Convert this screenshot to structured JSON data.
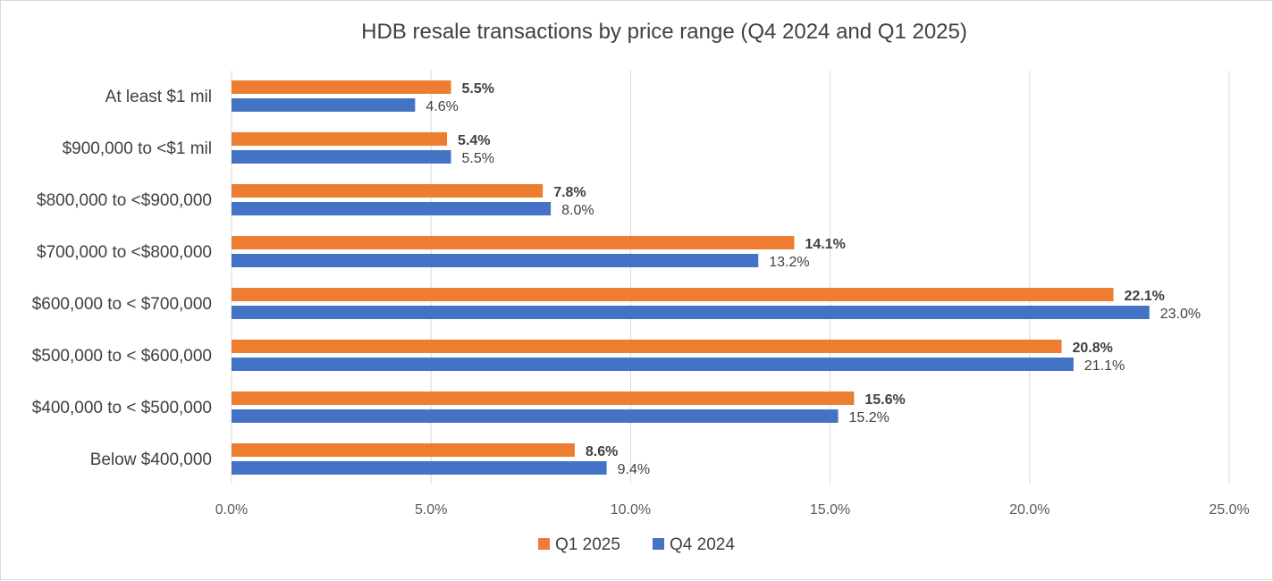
{
  "chart_data": {
    "type": "bar",
    "orientation": "horizontal",
    "title": "HDB resale transactions by price range (Q4 2024 and Q1 2025)",
    "xlabel": "",
    "ylabel": "",
    "categories": [
      "At least $1 mil",
      "$900,000 to <$1 mil",
      "$800,000 to <$900,000",
      "$700,000 to <$800,000",
      "$600,000 to < $700,000",
      "$500,000 to < $600,000",
      "$400,000 to < $500,000",
      "Below $400,000"
    ],
    "series": [
      {
        "name": "Q1 2025",
        "color": "#ed7d31",
        "values": [
          5.5,
          5.4,
          7.8,
          14.1,
          22.1,
          20.8,
          15.6,
          8.6
        ],
        "labels": [
          "5.5%",
          "5.4%",
          "7.8%",
          "14.1%",
          "22.1%",
          "20.8%",
          "15.6%",
          "8.6%"
        ],
        "label_weight": "bold"
      },
      {
        "name": "Q4 2024",
        "color": "#4472c4",
        "values": [
          4.6,
          5.5,
          8.0,
          13.2,
          23.0,
          21.1,
          15.2,
          9.4
        ],
        "labels": [
          "4.6%",
          "5.5%",
          "8.0%",
          "13.2%",
          "23.0%",
          "21.1%",
          "15.2%",
          "9.4%"
        ],
        "label_weight": "normal"
      }
    ],
    "xlim": [
      0,
      25
    ],
    "ticks": [
      0,
      5,
      10,
      15,
      20,
      25
    ],
    "tick_labels": [
      "0.0%",
      "5.0%",
      "10.0%",
      "15.0%",
      "20.0%",
      "25.0%"
    ],
    "grid": true,
    "legend": "bottom"
  }
}
